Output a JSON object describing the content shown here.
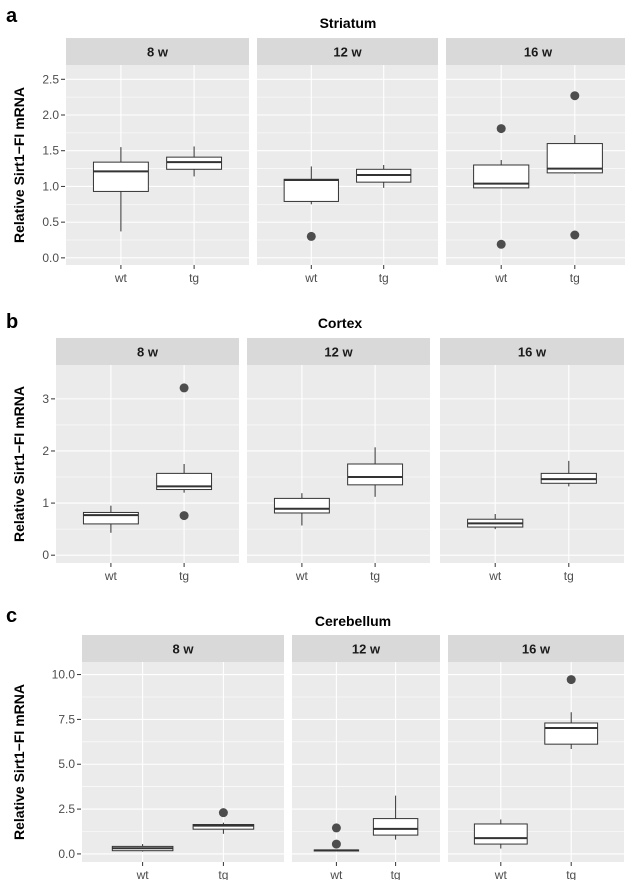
{
  "chart_data": [
    {
      "letter": "a",
      "type": "box",
      "title": "Striatum",
      "ylabel": "Relative Sirt1−FI mRNA",
      "categories": [
        "wt",
        "tg"
      ],
      "ylim": [
        -0.1,
        2.7
      ],
      "yticks": [
        0,
        0.5,
        1,
        1.5,
        2,
        2.5
      ],
      "ytick_labels": [
        "0.0",
        "0.5",
        "1.0",
        "1.5",
        "2.0",
        "2.5"
      ],
      "facets": [
        {
          "label": "8 w",
          "boxes": [
            {
              "group": "wt",
              "min": 0.37,
              "q1": 0.93,
              "median": 1.21,
              "q3": 1.34,
              "max": 1.55,
              "outliers": []
            },
            {
              "group": "tg",
              "min": 1.14,
              "q1": 1.24,
              "median": 1.34,
              "q3": 1.41,
              "max": 1.56,
              "outliers": []
            }
          ]
        },
        {
          "label": "12 w",
          "boxes": [
            {
              "group": "wt",
              "min": 0.75,
              "q1": 0.79,
              "median": 1.09,
              "q3": 1.1,
              "max": 1.28,
              "outliers": [
                0.3
              ]
            },
            {
              "group": "tg",
              "min": 0.98,
              "q1": 1.06,
              "median": 1.16,
              "q3": 1.24,
              "max": 1.3,
              "outliers": []
            }
          ]
        },
        {
          "label": "16 w",
          "boxes": [
            {
              "group": "wt",
              "min": 0.98,
              "q1": 0.98,
              "median": 1.04,
              "q3": 1.3,
              "max": 1.37,
              "outliers": [
                0.19,
                1.81
              ]
            },
            {
              "group": "tg",
              "min": 1.18,
              "q1": 1.19,
              "median": 1.25,
              "q3": 1.6,
              "max": 1.72,
              "outliers": [
                0.32,
                2.27
              ]
            }
          ]
        }
      ]
    },
    {
      "letter": "b",
      "type": "box",
      "title": "Cortex",
      "ylabel": "Relative Sirt1−FI mRNA",
      "categories": [
        "wt",
        "tg"
      ],
      "ylim": [
        -0.15,
        3.65
      ],
      "yticks": [
        0,
        1,
        2,
        3
      ],
      "ytick_labels": [
        "0",
        "1",
        "2",
        "3"
      ],
      "facets": [
        {
          "label": "8 w",
          "boxes": [
            {
              "group": "wt",
              "min": 0.43,
              "q1": 0.6,
              "median": 0.77,
              "q3": 0.82,
              "max": 0.95,
              "outliers": []
            },
            {
              "group": "tg",
              "min": 1.2,
              "q1": 1.26,
              "median": 1.32,
              "q3": 1.57,
              "max": 1.75,
              "outliers": [
                0.76,
                3.21
              ]
            }
          ]
        },
        {
          "label": "12 w",
          "boxes": [
            {
              "group": "wt",
              "min": 0.57,
              "q1": 0.81,
              "median": 0.89,
              "q3": 1.09,
              "max": 1.19,
              "outliers": []
            },
            {
              "group": "tg",
              "min": 1.12,
              "q1": 1.35,
              "median": 1.5,
              "q3": 1.75,
              "max": 2.07,
              "outliers": []
            }
          ]
        },
        {
          "label": "16 w",
          "boxes": [
            {
              "group": "wt",
              "min": 0.5,
              "q1": 0.54,
              "median": 0.61,
              "q3": 0.69,
              "max": 0.79,
              "outliers": []
            },
            {
              "group": "tg",
              "min": 1.32,
              "q1": 1.38,
              "median": 1.46,
              "q3": 1.57,
              "max": 1.81,
              "outliers": []
            }
          ]
        }
      ]
    },
    {
      "letter": "c",
      "type": "box",
      "title": "Cerebellum",
      "ylabel": "Relative Sirt1−FI mRNA",
      "categories": [
        "wt",
        "tg"
      ],
      "ylim": [
        -0.45,
        10.7
      ],
      "yticks": [
        0,
        2.5,
        5,
        7.5,
        10
      ],
      "ytick_labels": [
        "0.0",
        "2.5",
        "5.0",
        "7.5",
        "10.0"
      ],
      "facets": [
        {
          "label": "8 w",
          "boxes": [
            {
              "group": "wt",
              "min": 0.13,
              "q1": 0.18,
              "median": 0.32,
              "q3": 0.42,
              "max": 0.55,
              "outliers": []
            },
            {
              "group": "tg",
              "min": 1.12,
              "q1": 1.38,
              "median": 1.58,
              "q3": 1.64,
              "max": 1.74,
              "outliers": [
                2.3
              ]
            }
          ]
        },
        {
          "label": "12 w",
          "boxes": [
            {
              "group": "wt",
              "min": 0.15,
              "q1": 0.17,
              "median": 0.2,
              "q3": 0.22,
              "max": 0.24,
              "outliers": [
                0.55,
                1.45
              ]
            },
            {
              "group": "tg",
              "min": 0.8,
              "q1": 1.05,
              "median": 1.4,
              "q3": 1.97,
              "max": 3.25,
              "outliers": []
            }
          ]
        },
        {
          "label": "16 w",
          "boxes": [
            {
              "group": "wt",
              "min": 0.3,
              "q1": 0.55,
              "median": 0.88,
              "q3": 1.67,
              "max": 1.92,
              "outliers": []
            },
            {
              "group": "tg",
              "min": 5.85,
              "q1": 6.12,
              "median": 7.02,
              "q3": 7.3,
              "max": 7.9,
              "outliers": [
                9.72
              ]
            }
          ]
        }
      ]
    }
  ]
}
